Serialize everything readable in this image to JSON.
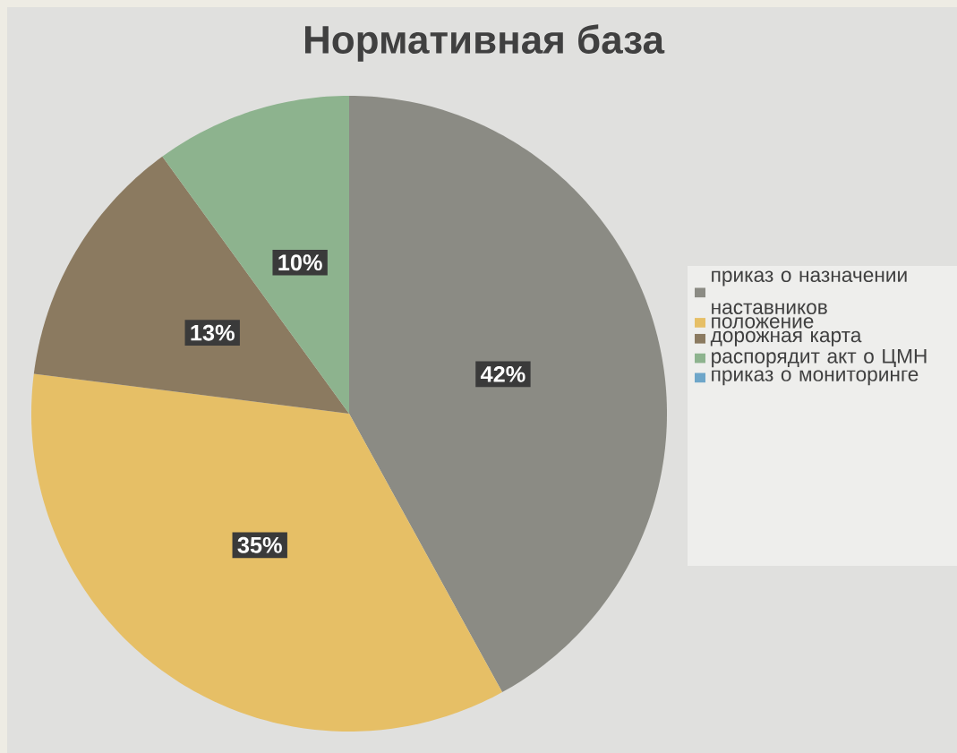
{
  "chart_data": {
    "type": "pie",
    "title": "Нормативная база",
    "categories": [
      "приказ о назначении наставников",
      "положение",
      "дорожная карта",
      "распорядит акт о ЦМН",
      "приказ о мониторинге"
    ],
    "values": [
      42,
      35,
      13,
      10,
      0
    ],
    "colors": [
      "#8b8b84",
      "#e6bf66",
      "#8b7a60",
      "#8db38e",
      "#6ea6c9"
    ],
    "value_labels": [
      "42%",
      "35%",
      "13%",
      "10%",
      null
    ],
    "legend": "right"
  }
}
